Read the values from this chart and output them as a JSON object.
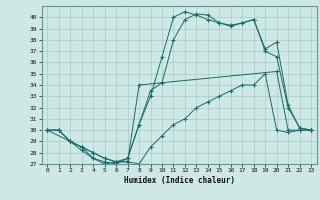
{
  "xlabel": "Humidex (Indice chaleur)",
  "bg_color": "#cde8e5",
  "grid_color": "#a8ccc9",
  "line_color": "#1a6b6b",
  "xlim": [
    -0.5,
    23.5
  ],
  "ylim": [
    27,
    41
  ],
  "yticks": [
    27,
    28,
    29,
    30,
    31,
    32,
    33,
    34,
    35,
    36,
    37,
    38,
    39,
    40
  ],
  "xticks": [
    0,
    1,
    2,
    3,
    4,
    5,
    6,
    7,
    8,
    9,
    10,
    11,
    12,
    13,
    14,
    15,
    16,
    17,
    18,
    19,
    20,
    21,
    22,
    23
  ],
  "line1_x": [
    0,
    1,
    2,
    3,
    4,
    5,
    6,
    7,
    8,
    9,
    10,
    11,
    12,
    13,
    14,
    15,
    16,
    17,
    18,
    19,
    20,
    21,
    22,
    23
  ],
  "line1_y": [
    30.0,
    30.0,
    29.0,
    28.2,
    27.5,
    27.0,
    27.2,
    27.2,
    27.0,
    28.5,
    29.5,
    30.5,
    31.0,
    32.0,
    32.5,
    33.0,
    33.5,
    34.0,
    34.0,
    35.0,
    30.0,
    29.8,
    30.0,
    30.0
  ],
  "line2_x": [
    0,
    1,
    2,
    3,
    4,
    5,
    6,
    7,
    8,
    9,
    10,
    11,
    12,
    13,
    14,
    15,
    16,
    17,
    18,
    19,
    20,
    21,
    22,
    23
  ],
  "line2_y": [
    30.0,
    30.0,
    29.0,
    28.5,
    28.0,
    27.5,
    27.2,
    27.5,
    30.5,
    33.0,
    36.5,
    40.0,
    40.5,
    40.2,
    39.8,
    39.5,
    39.2,
    39.5,
    39.8,
    37.2,
    37.8,
    32.2,
    30.2,
    30.0
  ],
  "line3_x": [
    0,
    1,
    2,
    3,
    4,
    5,
    6,
    7,
    8,
    9,
    10,
    11,
    12,
    13,
    14,
    15,
    16,
    17,
    18,
    19,
    20,
    21,
    22,
    23
  ],
  "line3_y": [
    30.0,
    30.0,
    29.0,
    28.5,
    27.5,
    27.2,
    27.0,
    27.5,
    30.5,
    33.5,
    34.2,
    38.0,
    39.8,
    40.3,
    40.2,
    39.5,
    39.3,
    39.5,
    39.8,
    37.0,
    36.5,
    32.0,
    30.2,
    30.0
  ],
  "line4_x": [
    0,
    2,
    3,
    4,
    5,
    6,
    7,
    8,
    20,
    21,
    22,
    23
  ],
  "line4_y": [
    30.0,
    29.0,
    28.5,
    28.0,
    27.5,
    27.2,
    27.2,
    34.0,
    35.2,
    30.0,
    30.0,
    30.0
  ]
}
